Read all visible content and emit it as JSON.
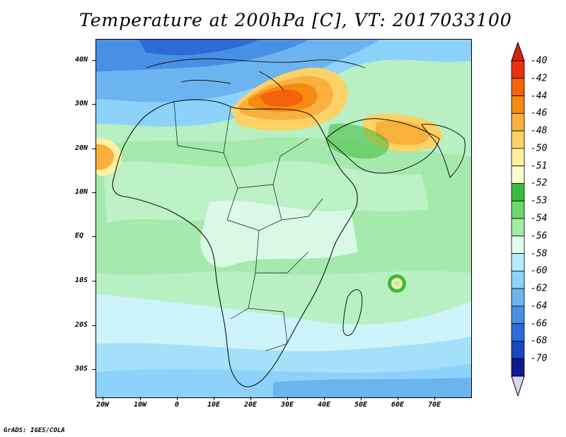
{
  "title": "Temperature at 200hPa [C], VT: 2017033100",
  "footer": "GrADS: IGES/COLA",
  "latitude_labels": [
    "40N",
    "30N",
    "20N",
    "10N",
    "EQ",
    "10S",
    "20S",
    "30S"
  ],
  "longitude_labels": [
    "20W",
    "10W",
    "0",
    "10E",
    "20E",
    "30E",
    "40E",
    "50E",
    "60E",
    "70E"
  ],
  "legend": {
    "labels": [
      "-40",
      "-42",
      "-44",
      "-46",
      "-48",
      "-50",
      "-51",
      "-52",
      "-53",
      "-54",
      "-56",
      "-58",
      "-60",
      "-62",
      "-64",
      "-66",
      "-68",
      "-70"
    ],
    "colors": [
      "#e8300c",
      "#f4620c",
      "#f78a10",
      "#f9b03c",
      "#fcd166",
      "#fff0a0",
      "#fafcd0",
      "#3cbc3c",
      "#6cd86c",
      "#a0eca0",
      "#e4fcf0",
      "#b4eefa",
      "#8cd2fa",
      "#6cb4f0",
      "#4890e4",
      "#2c6cd8",
      "#1a46c0",
      "#0c1a8c"
    ],
    "over_color": "#e0200c",
    "under_color": "#d8d4f4"
  }
}
